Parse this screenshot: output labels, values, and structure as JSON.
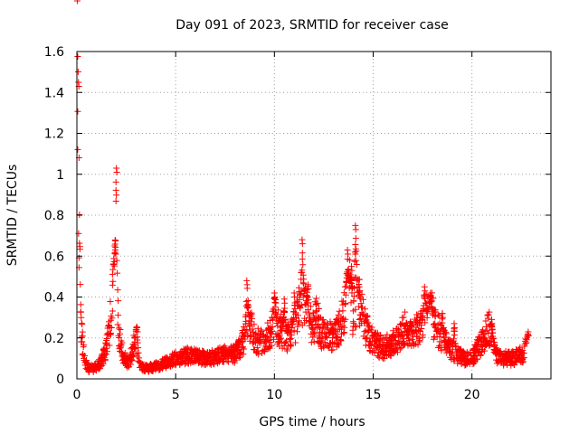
{
  "chart_data": {
    "type": "scatter",
    "title": "Day 091 of 2023, SRMTID for receiver case",
    "xlabel": "GPS time / hours",
    "ylabel": "SRMTID / TECUs",
    "xlim": [
      0,
      24
    ],
    "ylim": [
      0,
      1.6
    ],
    "grid": true,
    "marker": "plus",
    "x_ticks": [
      0,
      5,
      10,
      15,
      20
    ],
    "x_tick_labels": [
      "0",
      "5",
      "10",
      "15",
      "20"
    ],
    "y_ticks": [
      0,
      0.2,
      0.4,
      0.6,
      0.8,
      1.0,
      1.2,
      1.4,
      1.6
    ],
    "y_tick_labels": [
      "0",
      "0.2",
      "0.4",
      "0.6",
      "0.8",
      "1",
      "1.2",
      "1.4",
      "1.6"
    ],
    "series_color": "#ff0000",
    "series": [
      {
        "name": "SRMTID",
        "profile_x": [
          0.0,
          0.05,
          0.1,
          0.15,
          0.2,
          0.3,
          0.4,
          0.5,
          0.6,
          0.8,
          1.0,
          1.2,
          1.4,
          1.6,
          1.75,
          1.85,
          1.95,
          2.0,
          2.1,
          2.2,
          2.4,
          2.6,
          2.8,
          3.0,
          3.1,
          3.2,
          3.5,
          4.0,
          4.5,
          5.0,
          5.5,
          6.0,
          6.5,
          7.0,
          7.5,
          8.0,
          8.3,
          8.5,
          8.7,
          8.9,
          9.2,
          9.5,
          9.8,
          10.0,
          10.2,
          10.5,
          10.8,
          11.0,
          11.3,
          11.5,
          11.7,
          11.9,
          12.1,
          12.4,
          12.7,
          13.0,
          13.3,
          13.6,
          13.8,
          14.0,
          14.2,
          14.4,
          14.6,
          15.0,
          15.5,
          16.0,
          16.3,
          16.6,
          17.0,
          17.3,
          17.6,
          17.9,
          18.2,
          18.5,
          18.8,
          19.2,
          19.6,
          20.0,
          20.3,
          20.6,
          20.9,
          21.2,
          21.5,
          21.8,
          22.1,
          22.4,
          22.6,
          22.8
        ],
        "profile_y": [
          1.45,
          1.3,
          0.9,
          0.5,
          0.3,
          0.15,
          0.1,
          0.06,
          0.05,
          0.05,
          0.06,
          0.08,
          0.12,
          0.2,
          0.35,
          0.55,
          0.45,
          0.3,
          0.2,
          0.18,
          0.1,
          0.08,
          0.12,
          0.22,
          0.12,
          0.06,
          0.05,
          0.06,
          0.08,
          0.1,
          0.11,
          0.12,
          0.1,
          0.11,
          0.12,
          0.12,
          0.16,
          0.2,
          0.3,
          0.22,
          0.18,
          0.2,
          0.22,
          0.3,
          0.25,
          0.22,
          0.2,
          0.25,
          0.35,
          0.4,
          0.3,
          0.25,
          0.3,
          0.22,
          0.2,
          0.22,
          0.25,
          0.35,
          0.45,
          0.3,
          0.4,
          0.35,
          0.25,
          0.18,
          0.15,
          0.18,
          0.2,
          0.25,
          0.2,
          0.25,
          0.3,
          0.35,
          0.25,
          0.2,
          0.15,
          0.12,
          0.1,
          0.1,
          0.15,
          0.2,
          0.25,
          0.12,
          0.1,
          0.1,
          0.1,
          0.12,
          0.1,
          0.2
        ],
        "spikes": [
          {
            "x": 0.08,
            "y": 1.45
          },
          {
            "x": 2.0,
            "y": 1.03
          },
          {
            "x": 1.95,
            "y": 0.63
          },
          {
            "x": 3.05,
            "y": 0.25
          },
          {
            "x": 8.6,
            "y": 0.48
          },
          {
            "x": 10.0,
            "y": 0.42
          },
          {
            "x": 10.5,
            "y": 0.39
          },
          {
            "x": 11.0,
            "y": 0.42
          },
          {
            "x": 11.4,
            "y": 0.68
          },
          {
            "x": 11.7,
            "y": 0.46
          },
          {
            "x": 13.7,
            "y": 0.63
          },
          {
            "x": 13.9,
            "y": 0.55
          },
          {
            "x": 14.1,
            "y": 0.75
          },
          {
            "x": 14.3,
            "y": 0.45
          },
          {
            "x": 16.9,
            "y": 0.28
          },
          {
            "x": 17.6,
            "y": 0.45
          },
          {
            "x": 17.9,
            "y": 0.42
          },
          {
            "x": 18.5,
            "y": 0.32
          },
          {
            "x": 19.1,
            "y": 0.27
          },
          {
            "x": 21.0,
            "y": 0.29
          },
          {
            "x": 22.85,
            "y": 0.23
          }
        ],
        "x_end": 22.85
      }
    ]
  }
}
